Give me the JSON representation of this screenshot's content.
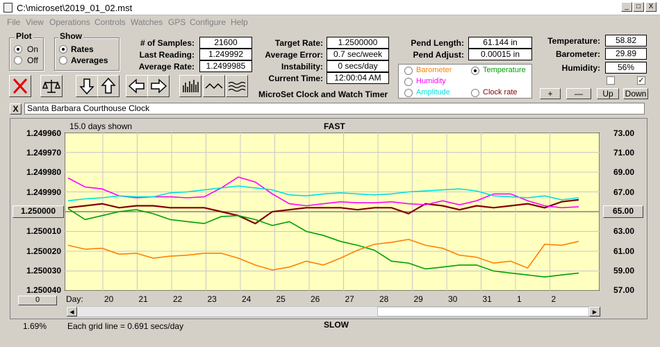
{
  "window": {
    "title": "C:\\microset\\2019_01_02.mst",
    "min": "_",
    "max": "□",
    "close": "X"
  },
  "menu": [
    "File",
    "View",
    "Operations",
    "Controls",
    "Watches",
    "GPS",
    "Configure",
    "Help"
  ],
  "plot_group": {
    "title": "Plot",
    "on": "On",
    "off": "Off"
  },
  "show_group": {
    "title": "Show",
    "rates": "Rates",
    "averages": "Averages"
  },
  "stats": {
    "samples_label": "# of Samples:",
    "samples": "21600",
    "last_label": "Last Reading:",
    "last": "1.249992",
    "avg_label": "Average Rate:",
    "avg": "1.2499985",
    "target_label": "Target Rate:",
    "target": "1.2500000",
    "error_label": "Average Error:",
    "error": "0.7 sec/week",
    "instab_label": "Instability:",
    "instab": "0 secs/day",
    "time_label": "Current Time:",
    "time": "12:00:04 AM",
    "pend_len_label": "Pend Length:",
    "pend_len": "61.144 in",
    "pend_adj_label": "Pend Adjust:",
    "pend_adj": "0.00015 in",
    "temp_label": "Temperature:",
    "temp": "58.82",
    "baro_label": "Barometer:",
    "baro": "29.89",
    "hum_label": "Humidity:",
    "hum": "56%"
  },
  "app_caption": "MicroSet Clock and Watch Timer",
  "overlay_options": {
    "barometer": "Barometer",
    "temperature": "Temperature",
    "humidity": "Humidity",
    "amplitude": "Amplitude",
    "clock_rate": "Clock rate"
  },
  "nav_buttons": {
    "plus": "+",
    "minus": "—",
    "up": "Up",
    "down": "Down"
  },
  "close_x": "X",
  "watch_name": "Santa Barbara Courthouse Clock",
  "chart_header": {
    "days_shown": "15.0 days shown",
    "fast": "FAST",
    "slow": "SLOW",
    "day_label": "Day:",
    "grid_note": "Each grid line = 0.691 secs/day",
    "percent": "1.69%",
    "center_left": "1.250000",
    "center_right": "65.00",
    "zero_btn": "0"
  },
  "colors": {
    "barometer": "#ff8000",
    "temperature": "#00a000",
    "humidity": "#ff00ff",
    "amplitude": "#00e0e0",
    "clock_rate": "#800000",
    "plot_bg": "#ffffc0"
  },
  "chart_data": {
    "type": "line",
    "title": "",
    "y_left_ticks": [
      "1.249960",
      "1.249970",
      "1.249980",
      "1.249990",
      "1.250000",
      "1.250010",
      "1.250020",
      "1.250030",
      "1.250040"
    ],
    "y_right_ticks": [
      "73.00",
      "71.00",
      "69.00",
      "67.00",
      "65.00",
      "63.00",
      "61.00",
      "59.00",
      "57.00"
    ],
    "x_ticks": [
      "20",
      "21",
      "22",
      "23",
      "24",
      "25",
      "26",
      "27",
      "28",
      "29",
      "30",
      "31",
      "1",
      "2"
    ],
    "series": [
      {
        "name": "Clock rate",
        "color": "#800000",
        "values": [
          1.249998,
          1.249997,
          1.249996,
          1.249998,
          1.249997,
          1.249997,
          1.249998,
          1.249998,
          1.249998,
          1.25,
          1.250002,
          1.250006,
          1.25,
          1.249999,
          1.249998,
          1.249998,
          1.249998,
          1.249999,
          1.249998,
          1.249998,
          1.250001,
          1.249996,
          1.249997,
          1.249999,
          1.249997,
          1.249998,
          1.249997,
          1.249996,
          1.249998,
          1.249995,
          1.249994
        ]
      },
      {
        "name": "Temperature",
        "color": "#00a000",
        "values": [
          65.3,
          64.2,
          64.6,
          65.0,
          65.2,
          64.8,
          64.2,
          64.0,
          63.8,
          64.5,
          64.6,
          64.2,
          63.6,
          64.0,
          63.0,
          62.6,
          62.0,
          61.6,
          61.1,
          60.0,
          59.8,
          59.2,
          59.4,
          59.6,
          59.6,
          59.0,
          58.8,
          58.6,
          58.4,
          58.6,
          58.8
        ]
      },
      {
        "name": "Barometer",
        "color": "#ff8000",
        "values": [
          61.6,
          61.2,
          61.3,
          60.7,
          60.8,
          60.3,
          60.5,
          60.6,
          60.8,
          60.8,
          60.3,
          59.6,
          59.1,
          59.4,
          60.0,
          59.6,
          60.3,
          61.1,
          61.7,
          61.9,
          62.2,
          61.6,
          61.3,
          60.6,
          60.4,
          59.8,
          60.0,
          59.3,
          61.7,
          61.6,
          62.0
        ]
      },
      {
        "name": "Humidity",
        "color": "#ff00ff",
        "values": [
          68.4,
          67.5,
          67.3,
          66.6,
          66.4,
          66.5,
          66.5,
          66.4,
          66.5,
          67.4,
          68.5,
          68.0,
          66.8,
          65.8,
          65.6,
          65.8,
          66.0,
          65.9,
          65.9,
          66.0,
          65.8,
          65.7,
          66.1,
          65.7,
          66.1,
          66.8,
          66.8,
          66.1,
          65.6,
          65.4,
          65.5
        ]
      },
      {
        "name": "Amplitude",
        "color": "#00e0e0",
        "values": [
          66.1,
          66.3,
          66.4,
          66.6,
          66.5,
          66.5,
          66.9,
          67.0,
          67.2,
          67.4,
          67.6,
          67.4,
          67.2,
          66.7,
          66.6,
          66.8,
          66.9,
          66.8,
          66.7,
          66.8,
          67.0,
          67.1,
          67.2,
          67.3,
          67.1,
          66.6,
          66.5,
          66.4,
          66.6,
          66.2,
          66.4
        ]
      }
    ]
  }
}
